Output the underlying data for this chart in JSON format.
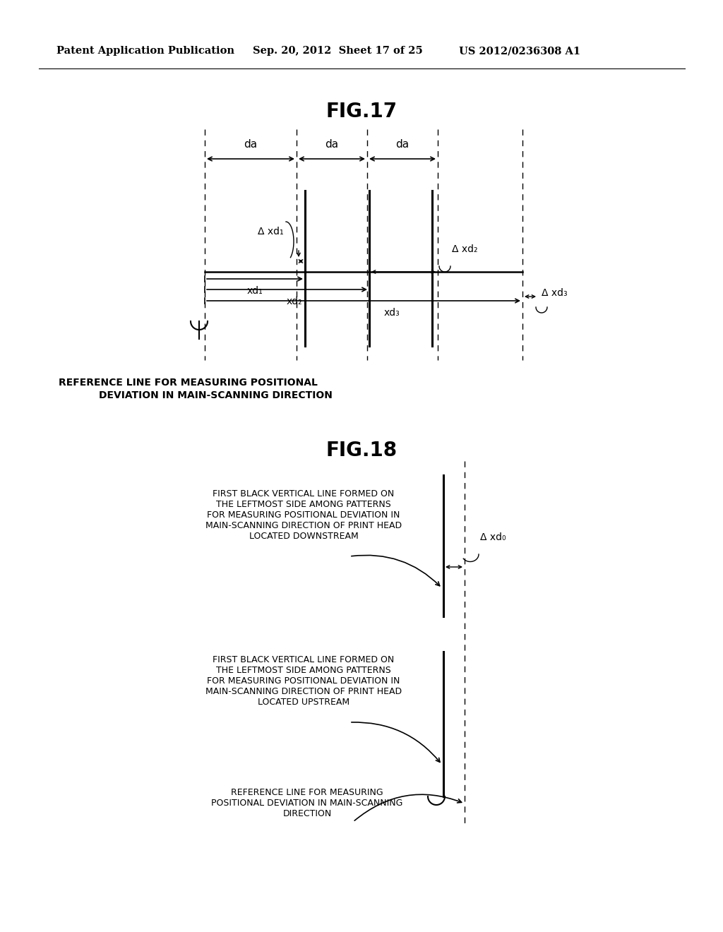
{
  "header_left": "Patent Application Publication",
  "header_mid": "Sep. 20, 2012  Sheet 17 of 25",
  "header_right": "US 2012/0236308 A1",
  "fig17_title": "FIG.17",
  "fig18_title": "FIG.18",
  "fig17_caption": "REFERENCE LINE FOR MEASURING POSITIONAL\n     DEVIATION IN MAIN-SCANNING DIRECTION",
  "fig18_label1": "FIRST BLACK VERTICAL LINE FORMED ON\nTHE LEFTMOST SIDE AMONG PATTERNS\nFOR MEASURING POSITIONAL DEVIATION IN\nMAIN-SCANNING DIRECTION OF PRINT HEAD\n         LOCATED DOWNSTREAM",
  "fig18_label2": "FIRST BLACK VERTICAL LINE FORMED ON\nTHE LEFTMOST SIDE AMONG PATTERNS\nFOR MEASURING POSITIONAL DEVIATION IN\nMAIN-SCANNING DIRECTION OF PRINT HEAD\n           LOCATED UPSTREAM",
  "fig18_label3": "REFERENCE LINE FOR MEASURING\nPOSITIONAL DEVIATION IN MAIN-SCANNING\n              DIRECTION",
  "bg_color": "#ffffff",
  "line_color": "#000000"
}
